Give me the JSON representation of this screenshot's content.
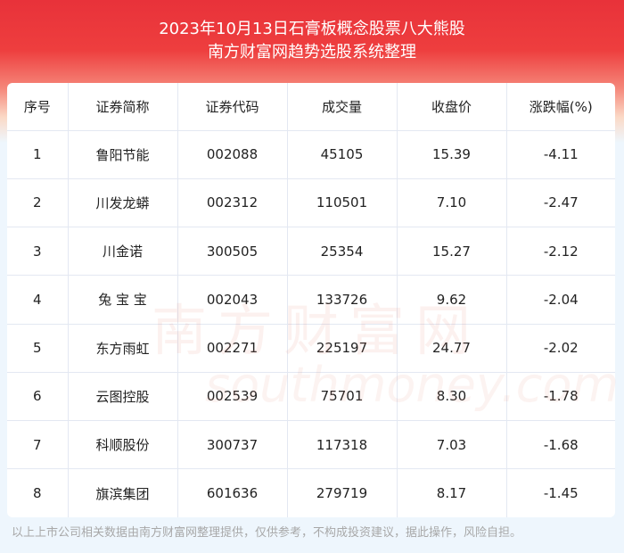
{
  "header": {
    "title": "2023年10月13日石膏板概念股票八大熊股",
    "subtitle": "南方财富网趋势选股系统整理"
  },
  "table": {
    "columns": [
      "序号",
      "证券简称",
      "证券代码",
      "成交量",
      "收盘价",
      "涨跌幅(%)"
    ],
    "rows": [
      [
        "1",
        "鲁阳节能",
        "002088",
        "45105",
        "15.39",
        "-4.11"
      ],
      [
        "2",
        "川发龙蟒",
        "002312",
        "110501",
        "7.10",
        "-2.47"
      ],
      [
        "3",
        "川金诺",
        "300505",
        "25354",
        "15.27",
        "-2.12"
      ],
      [
        "4",
        "兔 宝 宝",
        "002043",
        "133726",
        "9.62",
        "-2.04"
      ],
      [
        "5",
        "东方雨虹",
        "002271",
        "225197",
        "24.77",
        "-2.02"
      ],
      [
        "6",
        "云图控股",
        "002539",
        "75701",
        "8.30",
        "-1.78"
      ],
      [
        "7",
        "科顺股份",
        "300737",
        "117318",
        "7.03",
        "-1.68"
      ],
      [
        "8",
        "旗滨集团",
        "601636",
        "279719",
        "8.17",
        "-1.45"
      ]
    ]
  },
  "watermark": {
    "cn": "南方财富网",
    "en": "southmoney.com"
  },
  "footer": "以上上市公司相关数据由南方财富网整理提供，仅供参考，不构成投资建议，据此操作，风险自担。"
}
